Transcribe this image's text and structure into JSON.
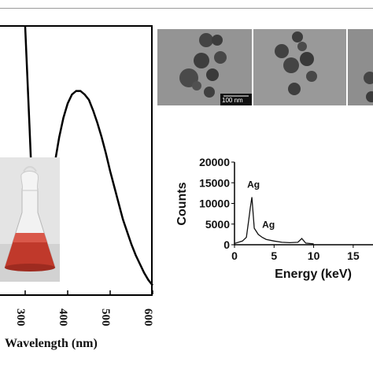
{
  "uv_vis": {
    "xlabel": "Wavelength (nm)",
    "x_ticks": [
      "300",
      "400",
      "500",
      "600"
    ]
  },
  "tem": {
    "scalebar_label": "100 nm"
  },
  "chart_data": [
    {
      "type": "line",
      "xlabel": "Wavelength (nm)",
      "ylabel": "",
      "xlim": [
        300,
        600
      ],
      "x_ticks": [
        300,
        400,
        500,
        600
      ],
      "y_scale": "arbitrary (no axis values shown)",
      "x": [
        300,
        310,
        320,
        330,
        340,
        350,
        360,
        370,
        380,
        390,
        400,
        410,
        420,
        430,
        440,
        450,
        460,
        470,
        480,
        490,
        500,
        510,
        520,
        530,
        540,
        550,
        560,
        570,
        580,
        590,
        600
      ],
      "values": [
        1.5,
        0.95,
        0.38,
        0.3,
        0.31,
        0.42,
        0.58,
        0.74,
        0.88,
        0.99,
        1.07,
        1.12,
        1.14,
        1.14,
        1.12,
        1.09,
        1.03,
        0.96,
        0.88,
        0.79,
        0.69,
        0.6,
        0.51,
        0.42,
        0.35,
        0.28,
        0.22,
        0.17,
        0.12,
        0.08,
        0.05
      ]
    },
    {
      "type": "line",
      "xlabel": "Energy (keV)",
      "ylabel": "Counts",
      "xlim": [
        0,
        17
      ],
      "ylim": [
        0,
        20000
      ],
      "x_ticks": [
        0,
        5,
        10,
        15
      ],
      "y_ticks": [
        0,
        5000,
        10000,
        15000,
        20000
      ],
      "x": [
        0,
        0.5,
        1.0,
        1.5,
        1.8,
        2.0,
        2.2,
        2.5,
        3.0,
        3.5,
        4.0,
        5.0,
        6.0,
        7.0,
        8.0,
        8.5,
        9.0,
        10.0
      ],
      "values": [
        300,
        600,
        900,
        1800,
        6000,
        9000,
        11500,
        4000,
        2500,
        1800,
        1300,
        900,
        600,
        500,
        600,
        1500,
        400,
        200
      ],
      "annotations": [
        {
          "text": "Ag",
          "x": 2.2,
          "y": 11500
        },
        {
          "text": "Ag",
          "x": 3.1,
          "y": 3000
        }
      ]
    }
  ]
}
